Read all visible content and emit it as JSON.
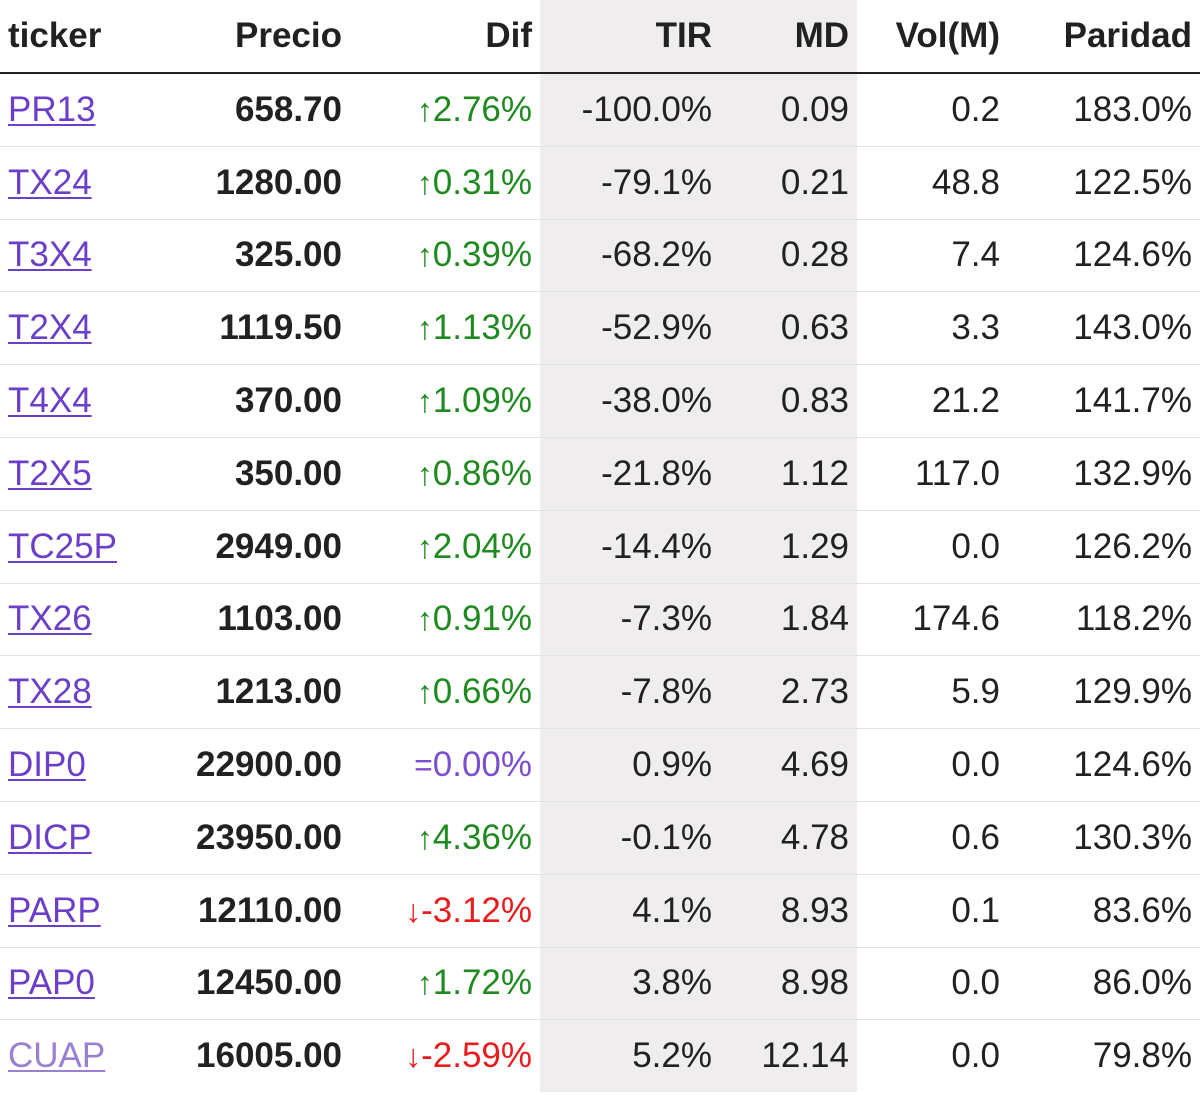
{
  "columns": {
    "ticker": "ticker",
    "precio": "Precio",
    "dif": "Dif",
    "tir": "TIR",
    "md": "MD",
    "vol": "Vol(M)",
    "paridad": "Paridad"
  },
  "colors": {
    "up": "#1f8a1f",
    "down": "#e81c1c",
    "neutral": "#7b4fd0",
    "link": "#6b3fc8",
    "shaded_column": "#efeded"
  },
  "rows": [
    {
      "ticker": "PR13",
      "precio": "658.70",
      "dir": "up",
      "arrow": "↑",
      "dif": "2.76%",
      "tir": "-100.0%",
      "md": "0.09",
      "vol": "0.2",
      "paridad": "183.0%"
    },
    {
      "ticker": "TX24",
      "precio": "1280.00",
      "dir": "up",
      "arrow": "↑",
      "dif": "0.31%",
      "tir": "-79.1%",
      "md": "0.21",
      "vol": "48.8",
      "paridad": "122.5%"
    },
    {
      "ticker": "T3X4",
      "precio": "325.00",
      "dir": "up",
      "arrow": "↑",
      "dif": "0.39%",
      "tir": "-68.2%",
      "md": "0.28",
      "vol": "7.4",
      "paridad": "124.6%"
    },
    {
      "ticker": "T2X4",
      "precio": "1119.50",
      "dir": "up",
      "arrow": "↑",
      "dif": "1.13%",
      "tir": "-52.9%",
      "md": "0.63",
      "vol": "3.3",
      "paridad": "143.0%"
    },
    {
      "ticker": "T4X4",
      "precio": "370.00",
      "dir": "up",
      "arrow": "↑",
      "dif": "1.09%",
      "tir": "-38.0%",
      "md": "0.83",
      "vol": "21.2",
      "paridad": "141.7%"
    },
    {
      "ticker": "T2X5",
      "precio": "350.00",
      "dir": "up",
      "arrow": "↑",
      "dif": "0.86%",
      "tir": "-21.8%",
      "md": "1.12",
      "vol": "117.0",
      "paridad": "132.9%"
    },
    {
      "ticker": "TC25P",
      "precio": "2949.00",
      "dir": "up",
      "arrow": "↑",
      "dif": "2.04%",
      "tir": "-14.4%",
      "md": "1.29",
      "vol": "0.0",
      "paridad": "126.2%"
    },
    {
      "ticker": "TX26",
      "precio": "1103.00",
      "dir": "up",
      "arrow": "↑",
      "dif": "0.91%",
      "tir": "-7.3%",
      "md": "1.84",
      "vol": "174.6",
      "paridad": "118.2%"
    },
    {
      "ticker": "TX28",
      "precio": "1213.00",
      "dir": "up",
      "arrow": "↑",
      "dif": "0.66%",
      "tir": "-7.8%",
      "md": "2.73",
      "vol": "5.9",
      "paridad": "129.9%"
    },
    {
      "ticker": "DIP0",
      "precio": "22900.00",
      "dir": "eq",
      "arrow": "=",
      "dif": "0.00%",
      "tir": "0.9%",
      "md": "4.69",
      "vol": "0.0",
      "paridad": "124.6%"
    },
    {
      "ticker": "DICP",
      "precio": "23950.00",
      "dir": "up",
      "arrow": "↑",
      "dif": "4.36%",
      "tir": "-0.1%",
      "md": "4.78",
      "vol": "0.6",
      "paridad": "130.3%"
    },
    {
      "ticker": "PARP",
      "precio": "12110.00",
      "dir": "down",
      "arrow": "↓",
      "dif": "-3.12%",
      "tir": "4.1%",
      "md": "8.93",
      "vol": "0.1",
      "paridad": "83.6%"
    },
    {
      "ticker": "PAP0",
      "precio": "12450.00",
      "dir": "up",
      "arrow": "↑",
      "dif": "1.72%",
      "tir": "3.8%",
      "md": "8.98",
      "vol": "0.0",
      "paridad": "86.0%"
    },
    {
      "ticker": "CUAP",
      "precio": "16005.00",
      "dir": "down",
      "arrow": "↓",
      "dif": "-2.59%",
      "tir": "5.2%",
      "md": "12.14",
      "vol": "0.0",
      "paridad": "79.8%"
    }
  ]
}
